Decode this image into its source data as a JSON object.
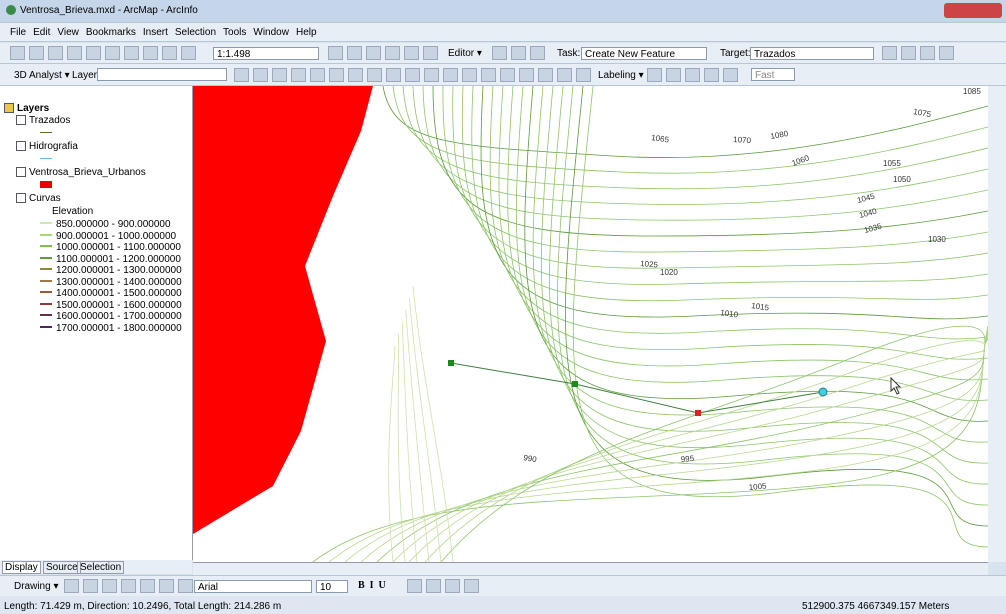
{
  "window": {
    "title": "Ventrosa_Brieva.mxd - ArcMap - ArcInfo"
  },
  "menu": [
    "File",
    "Edit",
    "View",
    "Bookmarks",
    "Insert",
    "Selection",
    "Tools",
    "Window",
    "Help"
  ],
  "toolbar": {
    "scale": "1:1.498",
    "editor": "Editor ▾",
    "task_label": "Task:",
    "task": "Create New Feature",
    "target_label": "Target:",
    "target": "Trazados",
    "analyst": "3D Analyst ▾",
    "layer_label": "Layer:",
    "labeling": "Labeling ▾",
    "quality": "Fast"
  },
  "toc": {
    "root": "Layers",
    "layers": [
      "Trazados",
      "Hidrografia",
      "Ventrosa_Brieva_Urbanos",
      "Curvas"
    ],
    "field": "Elevation",
    "classes": [
      "850.000000 - 900.000000",
      "900.000001 - 1000.000000",
      "1000.000001 - 1100.000000",
      "1100.000001 - 1200.000000",
      "1200.000001 - 1300.000000",
      "1300.000001 - 1400.000000",
      "1400.000001 - 1500.000000",
      "1500.000001 - 1600.000000",
      "1600.000001 - 1700.000000",
      "1700.000001 - 1800.000000"
    ]
  },
  "tabs": [
    "Display",
    "Source",
    "Selection"
  ],
  "contour_labels": [
    "1080",
    "1085",
    "1075",
    "1065",
    "1070",
    "1060",
    "1055",
    "1050",
    "1045",
    "1040",
    "1035",
    "1030",
    "1025",
    "1020",
    "1015",
    "1010",
    "990",
    "995",
    "1005"
  ],
  "drawing": {
    "label": "Drawing ▾",
    "font": "Arial",
    "size": "10"
  },
  "status": {
    "left": "Length: 71.429 m, Direction: 10.2496, Total Length: 214.286 m",
    "right": "512900.375 4667349.157 Meters"
  }
}
